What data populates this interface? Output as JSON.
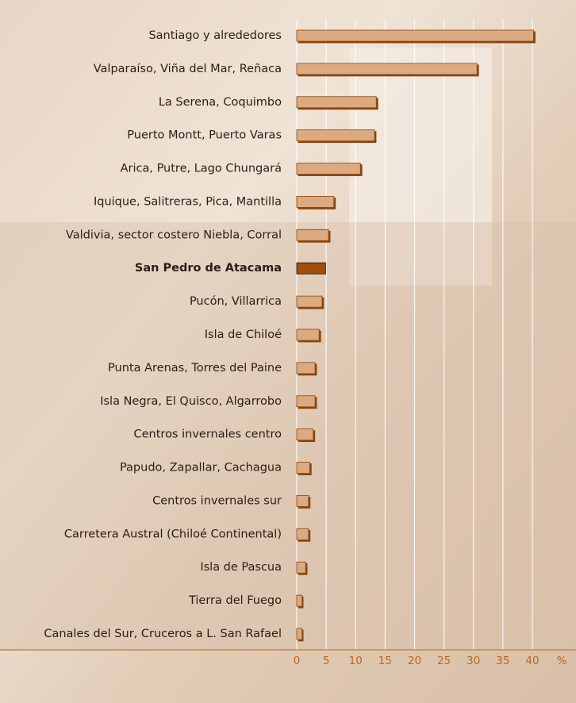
{
  "chart_data": {
    "type": "hbar",
    "categories": [
      "Santiago y alrededores",
      "Valparaíso, Viña del Mar, Reñaca",
      "La Serena, Coquimbo",
      "Puerto Montt, Puerto Varas",
      "Arica, Putre, Lago Chungará",
      "Iquique, Salitreras, Pica, Mantilla",
      "Valdivia, sector costero Niebla, Corral",
      "San Pedro de Atacama",
      "Pucón, Villarrica",
      "Isla de Chiloé",
      "Punta Arenas, Torres del Paine",
      "Isla Negra, El Quisco, Algarrobo",
      "Centros invernales centro",
      "Papudo, Zapallar, Cachagua",
      "Centros invernales sur",
      "Carretera Austral (Chiloé Continental)",
      "Isla de Pascua",
      "Tierra del Fuego",
      "Canales del Sur, Cruceros a L. San Rafael"
    ],
    "values": [
      40.2,
      30.6,
      13.5,
      13.2,
      10.8,
      6.3,
      5.4,
      4.9,
      4.3,
      3.8,
      3.1,
      3.1,
      2.8,
      2.2,
      2,
      2,
      1.5,
      0.9,
      0.9
    ],
    "color": "#dcaa80",
    "highlight_index": 7,
    "highlight_color": "#a24f0c",
    "xlim": [
      0,
      40
    ],
    "xticks": [
      0,
      5,
      10,
      15,
      20,
      25,
      30,
      35,
      40
    ],
    "x_unit_label": "%",
    "grid": true
  }
}
